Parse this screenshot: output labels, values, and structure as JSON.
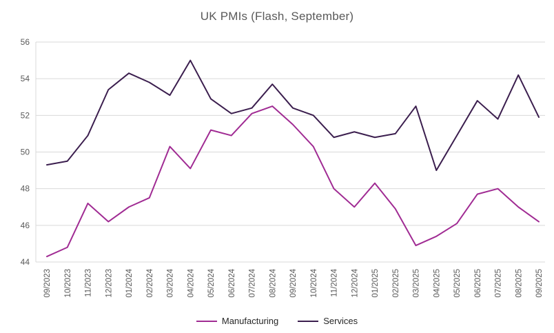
{
  "chart_data": {
    "type": "line",
    "title": "UK PMIs (Flash, September)",
    "categories": [
      "09/2023",
      "10/2023",
      "11/2023",
      "12/2023",
      "01/2024",
      "02/2024",
      "03/2024",
      "04/2024",
      "05/2024",
      "06/2024",
      "07/2024",
      "08/2024",
      "09/2024",
      "10/2024",
      "11/2024",
      "12/2024",
      "01/2025",
      "02/2025",
      "03/2025",
      "04/2025",
      "05/2025",
      "06/2025",
      "07/2025",
      "08/2025",
      "09/2025"
    ],
    "series": [
      {
        "name": "Manufacturing",
        "color": "#a02b93",
        "values": [
          44.3,
          44.8,
          47.2,
          46.2,
          47.0,
          47.5,
          50.3,
          49.1,
          51.2,
          50.9,
          52.1,
          52.5,
          51.5,
          50.3,
          48.0,
          47.0,
          48.3,
          46.9,
          44.9,
          45.4,
          46.1,
          47.7,
          48.0,
          47.0,
          46.2
        ]
      },
      {
        "name": "Services",
        "color": "#3b1e4e",
        "values": [
          49.3,
          49.5,
          50.9,
          53.4,
          54.3,
          53.8,
          53.1,
          55.0,
          52.9,
          52.1,
          52.4,
          53.7,
          52.4,
          52.0,
          50.8,
          51.1,
          50.8,
          51.0,
          52.5,
          49.0,
          50.9,
          52.8,
          51.8,
          54.2,
          51.9
        ]
      }
    ],
    "xlabel": "",
    "ylabel": "",
    "ylim": [
      44,
      56
    ],
    "ytick_step": 2,
    "grid": "horizontal",
    "legend_position": "bottom",
    "axis_label_color": "#595959",
    "gridline_color": "#d9d9d9",
    "title_color": "#595959"
  }
}
